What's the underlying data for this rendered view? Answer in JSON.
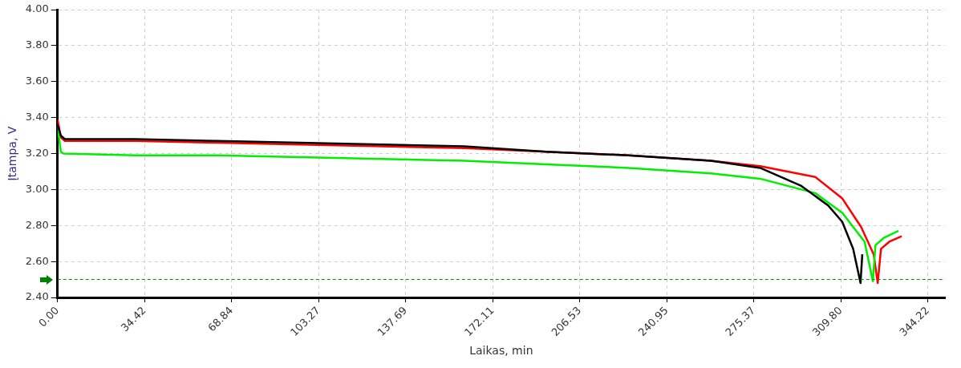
{
  "chart_data": {
    "type": "line",
    "xlabel": "Laikas, min",
    "ylabel": "Įtampa, V",
    "xlim": [
      0,
      351
    ],
    "xticks": [
      {
        "value": 0,
        "label": "0.00"
      },
      34.42,
      68.84,
      103.27,
      137.69,
      172.11,
      206.53,
      240.95,
      275.37,
      {
        "value": 309.8,
        "label": "309.80"
      },
      344.22
    ],
    "ylim": [
      2.4,
      4.0
    ],
    "yticks": [
      {
        "value": 2.4,
        "label": "2.40"
      },
      {
        "value": 2.6,
        "label": "2.60"
      },
      {
        "value": 2.8,
        "label": "2.80"
      },
      {
        "value": 3.0,
        "label": "3.00"
      },
      {
        "value": 3.2,
        "label": "3.20"
      },
      {
        "value": 3.4,
        "label": "3.40"
      },
      {
        "value": 3.6,
        "label": "3.60"
      },
      {
        "value": 3.8,
        "label": "3.80"
      },
      {
        "value": 4.0,
        "label": "4.00"
      }
    ],
    "grid": true,
    "legend": false,
    "marker": "none",
    "line_style": "solid",
    "series": [
      {
        "color": "#000000",
        "x": [
          0,
          1.3,
          2.9,
          30.6,
          63.1,
          95.7,
          128.2,
          160.8,
          193.3,
          225.8,
          258.4,
          277.9,
          294.2,
          304.9,
          310.4,
          314.7,
          317.6,
          318.3
        ],
        "values": [
          3.36,
          3.3,
          3.28,
          3.28,
          3.27,
          3.26,
          3.25,
          3.24,
          3.21,
          3.19,
          3.16,
          3.12,
          3.02,
          2.91,
          2.82,
          2.67,
          2.48,
          2.64
        ]
      },
      {
        "color": "#00ee00",
        "x": [
          0,
          1.3,
          2.3,
          30.6,
          63.1,
          95.7,
          128.2,
          160.8,
          193.3,
          225.8,
          258.4,
          277.9,
          299.7,
          310.4,
          319.2,
          322.5,
          323.5,
          326.7,
          332.6
        ],
        "values": [
          3.35,
          3.21,
          3.2,
          3.19,
          3.19,
          3.18,
          3.17,
          3.16,
          3.14,
          3.12,
          3.09,
          3.06,
          2.98,
          2.87,
          2.71,
          2.49,
          2.69,
          2.73,
          2.77
        ]
      },
      {
        "color": "#ff0000",
        "x": [
          0,
          1.3,
          2.9,
          30.6,
          63.1,
          95.7,
          128.2,
          160.8,
          193.3,
          225.8,
          258.4,
          277.9,
          299.7,
          310.4,
          317.9,
          322.8,
          324.4,
          325.7,
          329,
          333.9
        ],
        "values": [
          3.39,
          3.29,
          3.27,
          3.27,
          3.26,
          3.25,
          3.24,
          3.23,
          3.21,
          3.19,
          3.16,
          3.13,
          3.07,
          2.95,
          2.79,
          2.64,
          2.48,
          2.67,
          2.71,
          2.74
        ]
      }
    ],
    "ref_lines": [
      {
        "axis": "y",
        "value": 2.5,
        "color": "#008000",
        "line_style": "dashed"
      }
    ]
  }
}
